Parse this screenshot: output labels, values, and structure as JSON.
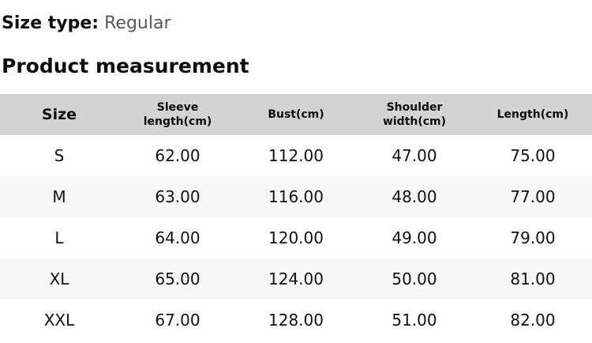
{
  "page": {
    "size_type_label": "Size type:",
    "size_type_value": "Regular",
    "section_title": "Product measurement"
  },
  "table": {
    "headers": {
      "size": "Size",
      "sleeve_length": "Sleeve length(cm)",
      "bust": "Bust(cm)",
      "shoulder_width": "Shoulder width(cm)",
      "length": "Length(cm)"
    },
    "rows": [
      {
        "size": "S",
        "sleeve_length": "62.00",
        "bust": "112.00",
        "shoulder_width": "47.00",
        "length": "75.00"
      },
      {
        "size": "M",
        "sleeve_length": "63.00",
        "bust": "116.00",
        "shoulder_width": "48.00",
        "length": "77.00"
      },
      {
        "size": "L",
        "sleeve_length": "64.00",
        "bust": "120.00",
        "shoulder_width": "49.00",
        "length": "79.00"
      },
      {
        "size": "XL",
        "sleeve_length": "65.00",
        "bust": "124.00",
        "shoulder_width": "50.00",
        "length": "81.00"
      },
      {
        "size": "XXL",
        "sleeve_length": "67.00",
        "bust": "128.00",
        "shoulder_width": "51.00",
        "length": "82.00"
      }
    ]
  },
  "colors": {
    "header_bg": "#d3d3d3",
    "stripe_bg": "#f6f6f6",
    "muted_text": "#595959",
    "text": "#0d0d0d"
  }
}
